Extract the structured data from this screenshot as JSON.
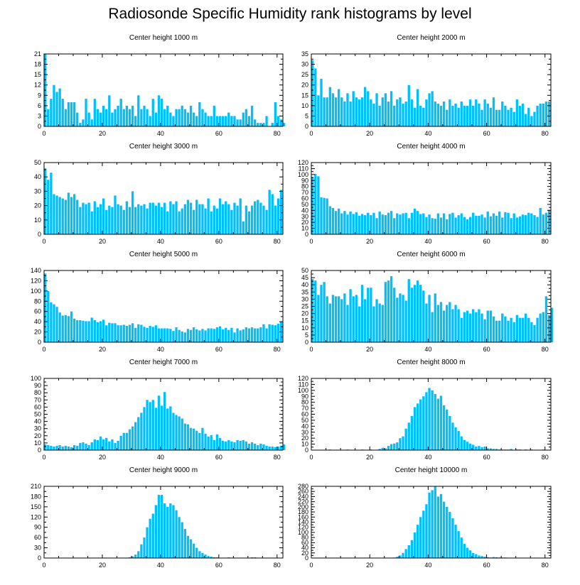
{
  "title": "Radiosonde Specific Humidity rank histograms by level",
  "colors": {
    "bar": "#00BFFF",
    "axis": "#000000"
  },
  "chart_data": [
    {
      "type": "bar",
      "title": "Center height 1000 m",
      "xlim": [
        0,
        82
      ],
      "xticks": [
        0,
        20,
        40,
        60,
        80
      ],
      "ylim": [
        0,
        21
      ],
      "yticks": [
        0,
        3,
        6,
        9,
        12,
        15,
        18,
        21
      ],
      "values": [
        21,
        5,
        8,
        12,
        10,
        11,
        8,
        5,
        7,
        7,
        7,
        4,
        1,
        2,
        8,
        4,
        2,
        8,
        5,
        4,
        6,
        5,
        9,
        4,
        5,
        6,
        8,
        5,
        6,
        5,
        6,
        3,
        9,
        5,
        6,
        5,
        3,
        8,
        4,
        9,
        8,
        5,
        6,
        4,
        3,
        5,
        5,
        6,
        5,
        4,
        6,
        4,
        3,
        7,
        5,
        4,
        3,
        3,
        6,
        3,
        3,
        3,
        3,
        4,
        3,
        3,
        2,
        2,
        4,
        5,
        3,
        6,
        2,
        1,
        1,
        1,
        3,
        0,
        1,
        7,
        3,
        2,
        1
      ]
    },
    {
      "type": "bar",
      "title": "Center height 2000 m",
      "xlim": [
        0,
        82
      ],
      "xticks": [
        0,
        20,
        40,
        60,
        80
      ],
      "ylim": [
        0,
        35
      ],
      "yticks": [
        0,
        5,
        10,
        15,
        20,
        25,
        30,
        35
      ],
      "values": [
        32,
        28,
        15,
        23,
        14,
        14,
        19,
        16,
        14,
        18,
        14,
        12,
        16,
        12,
        17,
        14,
        13,
        14,
        19,
        17,
        13,
        11,
        16,
        10,
        14,
        16,
        12,
        17,
        10,
        13,
        14,
        11,
        12,
        20,
        13,
        9,
        18,
        10,
        9,
        13,
        16,
        17,
        12,
        11,
        10,
        12,
        8,
        13,
        10,
        11,
        9,
        12,
        10,
        10,
        13,
        10,
        13,
        11,
        8,
        13,
        11,
        9,
        14,
        8,
        8,
        12,
        10,
        8,
        9,
        7,
        13,
        10,
        11,
        6,
        9,
        5,
        7,
        10,
        11,
        11,
        12,
        12
      ]
    },
    {
      "type": "bar",
      "title": "Center height 3000 m",
      "xlim": [
        0,
        82
      ],
      "xticks": [
        0,
        20,
        40,
        60,
        80
      ],
      "ylim": [
        0,
        50
      ],
      "yticks": [
        0,
        10,
        20,
        30,
        40,
        50
      ],
      "values": [
        46,
        38,
        43,
        28,
        27,
        26,
        25,
        24,
        29,
        26,
        28,
        24,
        19,
        22,
        21,
        22,
        16,
        23,
        19,
        21,
        25,
        17,
        20,
        19,
        27,
        21,
        20,
        17,
        23,
        19,
        30,
        19,
        21,
        20,
        21,
        18,
        22,
        22,
        20,
        22,
        19,
        22,
        16,
        23,
        21,
        23,
        16,
        18,
        21,
        24,
        22,
        17,
        24,
        21,
        21,
        18,
        25,
        16,
        20,
        18,
        25,
        21,
        23,
        21,
        17,
        22,
        20,
        25,
        9,
        20,
        16,
        20,
        23,
        24,
        22,
        20,
        17,
        31,
        28,
        20,
        25,
        31
      ]
    },
    {
      "type": "bar",
      "title": "Center height 4000 m",
      "xlim": [
        0,
        82
      ],
      "xticks": [
        0,
        20,
        40,
        60,
        80
      ],
      "ylim": [
        0,
        120
      ],
      "yticks": [
        0,
        10,
        20,
        30,
        40,
        50,
        60,
        70,
        80,
        90,
        100,
        110,
        120
      ],
      "values": [
        96,
        101,
        97,
        62,
        61,
        60,
        47,
        44,
        39,
        43,
        35,
        39,
        33,
        38,
        34,
        37,
        31,
        34,
        32,
        36,
        32,
        36,
        27,
        38,
        33,
        32,
        36,
        39,
        27,
        35,
        33,
        35,
        36,
        27,
        36,
        43,
        39,
        34,
        35,
        29,
        33,
        27,
        26,
        35,
        28,
        35,
        25,
        34,
        36,
        28,
        32,
        35,
        29,
        25,
        29,
        36,
        31,
        31,
        33,
        28,
        38,
        30,
        35,
        31,
        38,
        28,
        37,
        36,
        27,
        35,
        28,
        30,
        33,
        32,
        36,
        35,
        32,
        29,
        44,
        33,
        36,
        41
      ]
    },
    {
      "type": "bar",
      "title": "Center height 5000 m",
      "xlim": [
        0,
        82
      ],
      "xticks": [
        0,
        20,
        40,
        60,
        80
      ],
      "ylim": [
        0,
        140
      ],
      "yticks": [
        0,
        20,
        40,
        60,
        80,
        100,
        120,
        140
      ],
      "values": [
        134,
        100,
        78,
        74,
        69,
        58,
        52,
        53,
        51,
        60,
        46,
        43,
        43,
        42,
        41,
        41,
        48,
        43,
        39,
        41,
        44,
        33,
        38,
        37,
        37,
        33,
        33,
        34,
        32,
        34,
        37,
        28,
        35,
        34,
        30,
        28,
        32,
        30,
        33,
        27,
        27,
        27,
        27,
        26,
        22,
        29,
        24,
        21,
        19,
        26,
        24,
        29,
        25,
        23,
        26,
        23,
        27,
        27,
        26,
        29,
        31,
        25,
        28,
        24,
        28,
        19,
        27,
        23,
        25,
        29,
        27,
        29,
        27,
        27,
        29,
        35,
        27,
        35,
        34,
        33,
        36,
        40
      ]
    },
    {
      "type": "bar",
      "title": "Center height 6000 m",
      "xlim": [
        0,
        82
      ],
      "xticks": [
        0,
        20,
        40,
        60,
        80
      ],
      "ylim": [
        0,
        50
      ],
      "yticks": [
        0,
        5,
        10,
        15,
        20,
        25,
        30,
        35,
        40,
        45,
        50
      ],
      "values": [
        44,
        43,
        33,
        40,
        42,
        32,
        27,
        33,
        32,
        32,
        30,
        34,
        26,
        37,
        32,
        33,
        25,
        40,
        30,
        38,
        38,
        25,
        30,
        27,
        26,
        42,
        43,
        46,
        38,
        31,
        34,
        33,
        29,
        44,
        38,
        40,
        43,
        40,
        36,
        27,
        33,
        21,
        34,
        26,
        28,
        22,
        26,
        28,
        23,
        26,
        23,
        17,
        21,
        22,
        20,
        23,
        21,
        23,
        20,
        16,
        22,
        22,
        18,
        15,
        15,
        20,
        18,
        15,
        17,
        14,
        19,
        17,
        17,
        20,
        17,
        14,
        12,
        17,
        20,
        21,
        32,
        19,
        24
      ]
    },
    {
      "type": "bar",
      "title": "Center height 7000 m",
      "xlim": [
        0,
        82
      ],
      "xticks": [
        0,
        20,
        40,
        60,
        80
      ],
      "ylim": [
        0,
        100
      ],
      "yticks": [
        0,
        10,
        20,
        30,
        40,
        50,
        60,
        70,
        80,
        90,
        100
      ],
      "values": [
        8,
        7,
        6,
        5,
        6,
        7,
        5,
        6,
        5,
        4,
        7,
        6,
        10,
        11,
        9,
        7,
        11,
        15,
        14,
        19,
        15,
        17,
        12,
        15,
        10,
        13,
        20,
        24,
        24,
        29,
        33,
        39,
        46,
        52,
        60,
        70,
        67,
        70,
        59,
        76,
        62,
        81,
        58,
        61,
        52,
        49,
        47,
        44,
        37,
        36,
        31,
        30,
        27,
        24,
        31,
        23,
        19,
        21,
        14,
        22,
        17,
        13,
        12,
        14,
        12,
        11,
        14,
        13,
        14,
        12,
        9,
        11,
        9,
        7,
        9,
        8,
        6,
        5,
        5,
        4,
        5,
        6,
        8
      ]
    },
    {
      "type": "bar",
      "title": "Center height 8000 m",
      "xlim": [
        0,
        82
      ],
      "xticks": [
        0,
        20,
        40,
        60,
        80
      ],
      "ylim": [
        0,
        120
      ],
      "yticks": [
        0,
        10,
        20,
        30,
        40,
        50,
        60,
        70,
        80,
        90,
        100,
        110,
        120
      ],
      "values": [
        0,
        0,
        0,
        0,
        0,
        0,
        1,
        0,
        0,
        0,
        0,
        0,
        1,
        0,
        0,
        0,
        0,
        1,
        0,
        0,
        1,
        0,
        0,
        2,
        4,
        3,
        7,
        10,
        11,
        13,
        20,
        23,
        36,
        46,
        57,
        72,
        78,
        85,
        90,
        97,
        104,
        100,
        94,
        86,
        91,
        75,
        68,
        57,
        46,
        38,
        32,
        23,
        17,
        14,
        11,
        9,
        6,
        7,
        5,
        6,
        3,
        3,
        2,
        2,
        1,
        1,
        1,
        1,
        2,
        0,
        1,
        1,
        0,
        1,
        0,
        1,
        0,
        0,
        0,
        1,
        0,
        0,
        0
      ]
    },
    {
      "type": "bar",
      "title": "Center height 9000 m",
      "xlim": [
        0,
        82
      ],
      "xticks": [
        0,
        20,
        40,
        60,
        80
      ],
      "ylim": [
        0,
        210
      ],
      "yticks": [
        0,
        30,
        60,
        90,
        120,
        150,
        180,
        210
      ],
      "values": [
        0,
        0,
        0,
        0,
        0,
        0,
        0,
        0,
        0,
        0,
        0,
        0,
        0,
        0,
        0,
        0,
        0,
        0,
        0,
        0,
        0,
        0,
        0,
        0,
        0,
        0,
        0,
        0,
        1,
        2,
        5,
        10,
        20,
        40,
        60,
        90,
        115,
        130,
        155,
        185,
        185,
        160,
        150,
        160,
        155,
        140,
        120,
        105,
        85,
        65,
        55,
        42,
        30,
        20,
        15,
        10,
        6,
        4,
        2,
        2,
        1,
        1,
        1,
        2,
        1,
        1,
        1,
        1,
        1,
        1,
        1,
        2,
        2,
        1,
        1,
        1,
        1,
        1,
        1,
        1,
        0,
        0,
        0
      ]
    },
    {
      "type": "bar",
      "title": "Center height 10000 m",
      "xlim": [
        0,
        82
      ],
      "xticks": [
        0,
        20,
        40,
        60,
        80
      ],
      "ylim": [
        0,
        280
      ],
      "yticks": [
        0,
        20,
        40,
        60,
        80,
        100,
        120,
        140,
        160,
        180,
        200,
        220,
        240,
        260,
        280
      ],
      "values": [
        0,
        0,
        0,
        0,
        0,
        0,
        0,
        0,
        0,
        0,
        0,
        0,
        0,
        0,
        0,
        0,
        0,
        0,
        0,
        0,
        0,
        0,
        0,
        0,
        0,
        0,
        0,
        1,
        2,
        5,
        10,
        20,
        35,
        50,
        70,
        100,
        130,
        160,
        185,
        210,
        255,
        265,
        280,
        240,
        250,
        220,
        200,
        180,
        155,
        130,
        105,
        80,
        55,
        40,
        30,
        20,
        15,
        10,
        8,
        5,
        3,
        2,
        4,
        3,
        2,
        2,
        2,
        1,
        1,
        0,
        0,
        0,
        0,
        0,
        0,
        0,
        0,
        0,
        0,
        0,
        0,
        0,
        0
      ]
    }
  ]
}
